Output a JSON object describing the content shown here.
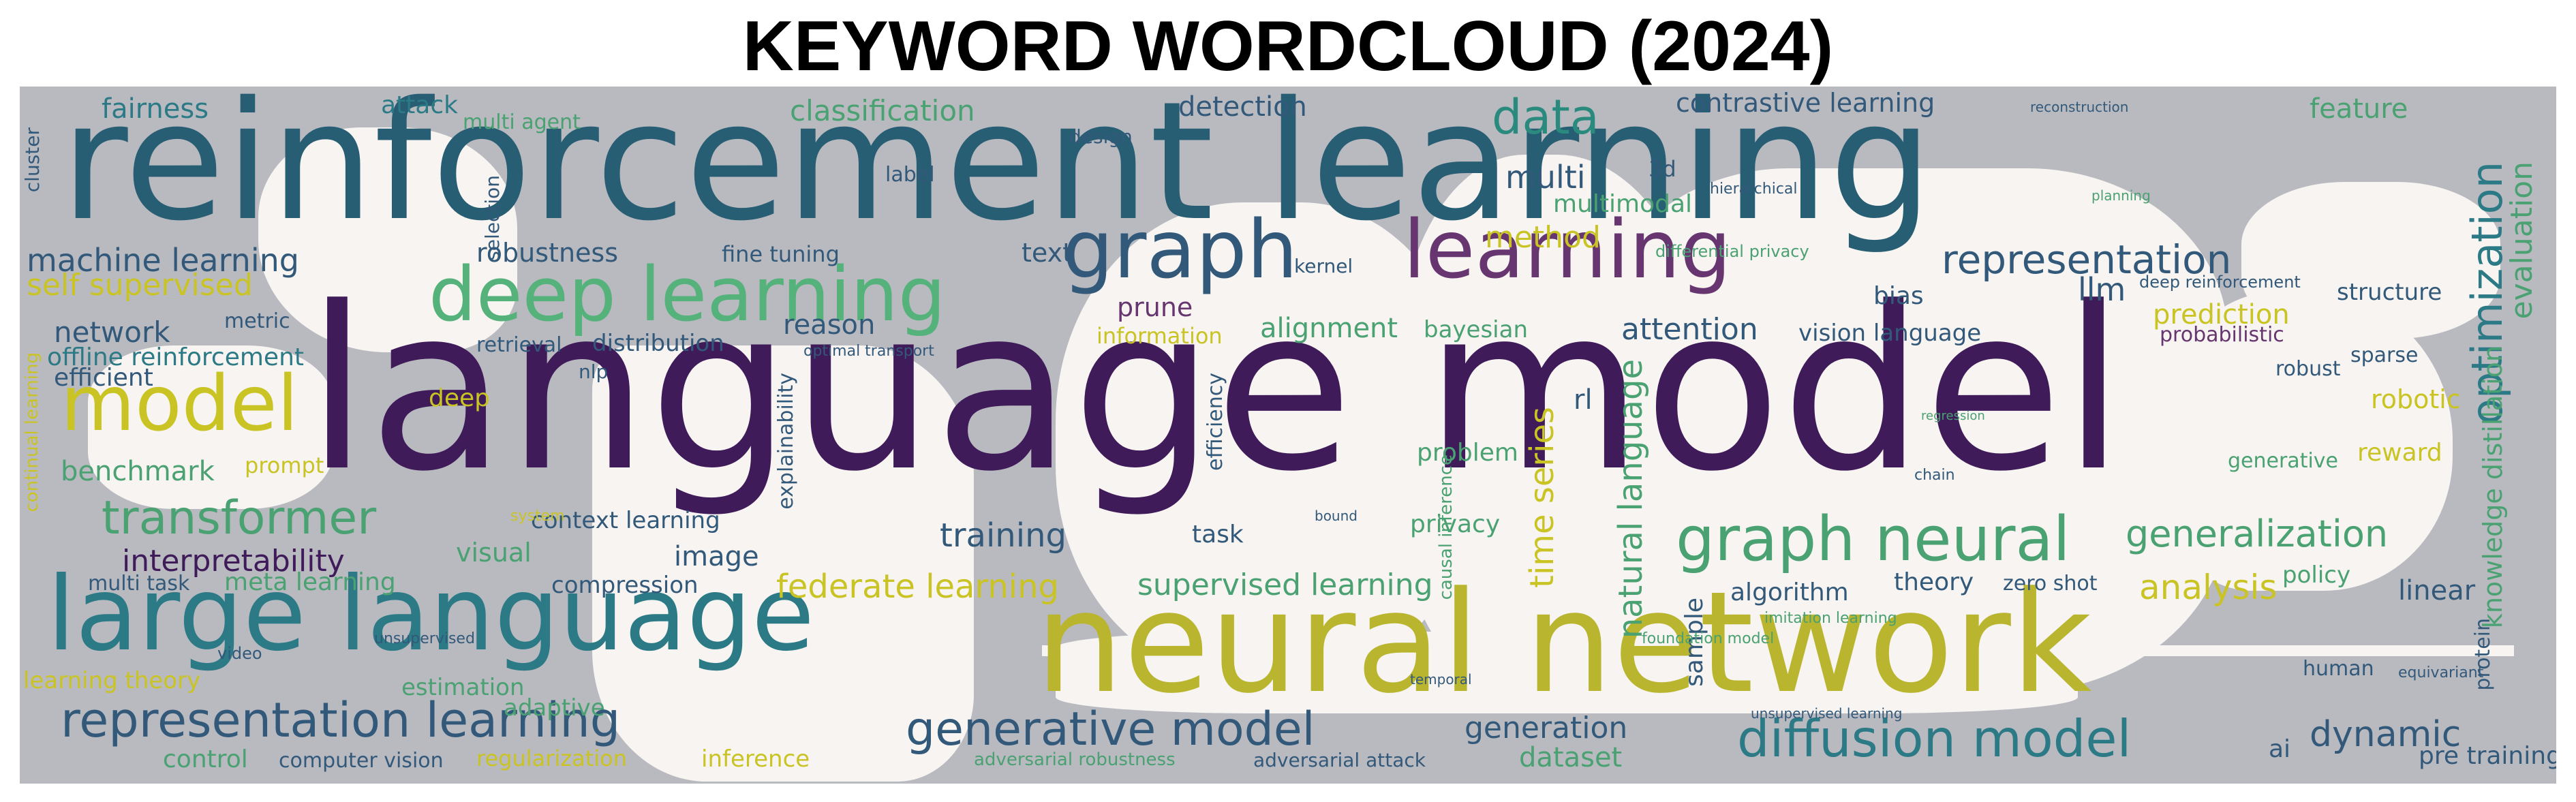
{
  "title": "KEYWORD WORDCLOUD (2024)",
  "palette": {
    "background": "#b9bac0",
    "mask": "#f7f4f1",
    "dark_purple": "#3f1b5a",
    "purple": "#67356f",
    "blue": "#33597a",
    "teal": "#2b7a86",
    "green": "#4aa171",
    "light_green": "#78c06a",
    "yellow": "#c9c424"
  },
  "words": [
    {
      "text": "language model",
      "color": "#3f1b5a"
    },
    {
      "text": "reinforcement learning",
      "color": "#285e73"
    },
    {
      "text": "neural network",
      "color": "#b9b52e"
    },
    {
      "text": "large language",
      "color": "#2b7a86"
    },
    {
      "text": "deep learning",
      "color": "#55b27b"
    },
    {
      "text": "graph",
      "color": "#33597a"
    },
    {
      "text": "learning",
      "color": "#67356f"
    },
    {
      "text": "model",
      "color": "#c9c424"
    },
    {
      "text": "graph neural",
      "color": "#4aa171"
    },
    {
      "text": "representation learning",
      "color": "#33597a"
    },
    {
      "text": "diffusion model",
      "color": "#2b7a86"
    },
    {
      "text": "generative model",
      "color": "#33597a"
    },
    {
      "text": "transformer",
      "color": "#4aa171"
    },
    {
      "text": "representation",
      "color": "#33597a"
    },
    {
      "text": "optimization",
      "color": "#2b7a86"
    },
    {
      "text": "data",
      "color": "#2b8a7e"
    },
    {
      "text": "classification",
      "color": "#4aa171"
    },
    {
      "text": "contrastive learning",
      "color": "#33597a"
    },
    {
      "text": "feature",
      "color": "#4aa171"
    },
    {
      "text": "fairness",
      "color": "#2b7a86"
    },
    {
      "text": "attack",
      "color": "#2b7a86"
    },
    {
      "text": "multi agent",
      "color": "#4aa171"
    },
    {
      "text": "detection",
      "color": "#33597a"
    },
    {
      "text": "machine learning",
      "color": "#33597a"
    },
    {
      "text": "robustness",
      "color": "#33597a"
    },
    {
      "text": "fine tuning",
      "color": "#33597a"
    },
    {
      "text": "text",
      "color": "#33597a"
    },
    {
      "text": "self supervised",
      "color": "#c9c424"
    },
    {
      "text": "network",
      "color": "#33597a"
    },
    {
      "text": "offline reinforcement",
      "color": "#2b7a86"
    },
    {
      "text": "efficient",
      "color": "#33597a"
    },
    {
      "text": "multi",
      "color": "#33597a"
    },
    {
      "text": "multimodal",
      "color": "#4aa171"
    },
    {
      "text": "method",
      "color": "#c9c424"
    },
    {
      "text": "llm",
      "color": "#33597a"
    },
    {
      "text": "prune",
      "color": "#67356f"
    },
    {
      "text": "reason",
      "color": "#33597a"
    },
    {
      "text": "information",
      "color": "#c9c424"
    },
    {
      "text": "alignment",
      "color": "#4aa171"
    },
    {
      "text": "bayesian",
      "color": "#4aa171"
    },
    {
      "text": "attention",
      "color": "#33597a"
    },
    {
      "text": "vision language",
      "color": "#33597a"
    },
    {
      "text": "prediction",
      "color": "#c9c424"
    },
    {
      "text": "probabilistic",
      "color": "#67356f"
    },
    {
      "text": "structure",
      "color": "#33597a"
    },
    {
      "text": "evaluation",
      "color": "#4aa171"
    },
    {
      "text": "bias",
      "color": "#33597a"
    },
    {
      "text": "retrieval",
      "color": "#33597a"
    },
    {
      "text": "distribution",
      "color": "#33597a"
    },
    {
      "text": "nlp",
      "color": "#33597a"
    },
    {
      "text": "benchmark",
      "color": "#4aa171"
    },
    {
      "text": "prompt",
      "color": "#c9c424"
    },
    {
      "text": "interpretability",
      "color": "#3f1b5a"
    },
    {
      "text": "meta learning",
      "color": "#4aa171"
    },
    {
      "text": "multi task",
      "color": "#33597a"
    },
    {
      "text": "context learning",
      "color": "#33597a"
    },
    {
      "text": "image",
      "color": "#33597a"
    },
    {
      "text": "training",
      "color": "#33597a"
    },
    {
      "text": "task",
      "color": "#33597a"
    },
    {
      "text": "privacy",
      "color": "#4aa171"
    },
    {
      "text": "federate learning",
      "color": "#c9c424"
    },
    {
      "text": "supervised learning",
      "color": "#4aa171"
    },
    {
      "text": "compression",
      "color": "#33597a"
    },
    {
      "text": "visual",
      "color": "#4aa171"
    },
    {
      "text": "explainability",
      "color": "#33597a"
    },
    {
      "text": "efficiency",
      "color": "#33597a"
    },
    {
      "text": "causal inference",
      "color": "#4aa171"
    },
    {
      "text": "problem",
      "color": "#4aa171"
    },
    {
      "text": "time series",
      "color": "#c9c424"
    },
    {
      "text": "natural language",
      "color": "#4aa171"
    },
    {
      "text": "rl",
      "color": "#33597a"
    },
    {
      "text": "sample",
      "color": "#33597a"
    },
    {
      "text": "algorithm",
      "color": "#33597a"
    },
    {
      "text": "theory",
      "color": "#33597a"
    },
    {
      "text": "zero shot",
      "color": "#33597a"
    },
    {
      "text": "analysis",
      "color": "#c9c424"
    },
    {
      "text": "generalization",
      "color": "#4aa171"
    },
    {
      "text": "policy",
      "color": "#4aa171"
    },
    {
      "text": "linear",
      "color": "#33597a"
    },
    {
      "text": "knowledge distillation",
      "color": "#4aa171"
    },
    {
      "text": "robotic",
      "color": "#c9c424"
    },
    {
      "text": "reward",
      "color": "#c9c424"
    },
    {
      "text": "generative",
      "color": "#4aa171"
    },
    {
      "text": "robust",
      "color": "#33597a"
    },
    {
      "text": "sparse",
      "color": "#33597a"
    },
    {
      "text": "human",
      "color": "#33597a"
    },
    {
      "text": "dynamic",
      "color": "#33597a"
    },
    {
      "text": "ai",
      "color": "#33597a"
    },
    {
      "text": "generation",
      "color": "#33597a"
    },
    {
      "text": "dataset",
      "color": "#4aa171"
    },
    {
      "text": "adversarial robustness",
      "color": "#4aa171"
    },
    {
      "text": "adversarial attack",
      "color": "#33597a"
    },
    {
      "text": "inference",
      "color": "#c9c424"
    },
    {
      "text": "regularization",
      "color": "#c9c424"
    },
    {
      "text": "computer vision",
      "color": "#33597a"
    },
    {
      "text": "control",
      "color": "#4aa171"
    },
    {
      "text": "estimation",
      "color": "#4aa171"
    },
    {
      "text": "adaptive",
      "color": "#4aa171"
    },
    {
      "text": "learning theory",
      "color": "#c9c424"
    },
    {
      "text": "pre training",
      "color": "#33597a"
    },
    {
      "text": "continual learning",
      "color": "#c9c424"
    },
    {
      "text": "deep",
      "color": "#c9c424"
    },
    {
      "text": "metric",
      "color": "#33597a"
    },
    {
      "text": "cluster",
      "color": "#33597a"
    },
    {
      "text": "label",
      "color": "#33597a"
    },
    {
      "text": "selection",
      "color": "#33597a"
    },
    {
      "text": "design",
      "color": "#33597a"
    },
    {
      "text": "3d",
      "color": "#33597a"
    },
    {
      "text": "kernel",
      "color": "#33597a"
    },
    {
      "text": "equivariant",
      "color": "#33597a"
    },
    {
      "text": "protein",
      "color": "#33597a"
    },
    {
      "text": "video",
      "color": "#33597a"
    },
    {
      "text": "imitation learning",
      "color": "#4aa171"
    },
    {
      "text": "foundation model",
      "color": "#4aa171"
    },
    {
      "text": "unsupervised learning",
      "color": "#33597a"
    },
    {
      "text": "temporal",
      "color": "#33597a"
    },
    {
      "text": "deep reinforcement",
      "color": "#33597a"
    },
    {
      "text": "differential privacy",
      "color": "#4aa171"
    },
    {
      "text": "regression",
      "color": "#4aa171"
    },
    {
      "text": "chain",
      "color": "#33597a"
    },
    {
      "text": "reconstruction",
      "color": "#33597a"
    },
    {
      "text": "planning",
      "color": "#4aa171"
    },
    {
      "text": "hierarchical",
      "color": "#33597a"
    },
    {
      "text": "unsupervised",
      "color": "#33597a"
    },
    {
      "text": "optimal transport",
      "color": "#33597a"
    },
    {
      "text": "system",
      "color": "#c9c424"
    },
    {
      "text": "bound",
      "color": "#33597a"
    }
  ]
}
